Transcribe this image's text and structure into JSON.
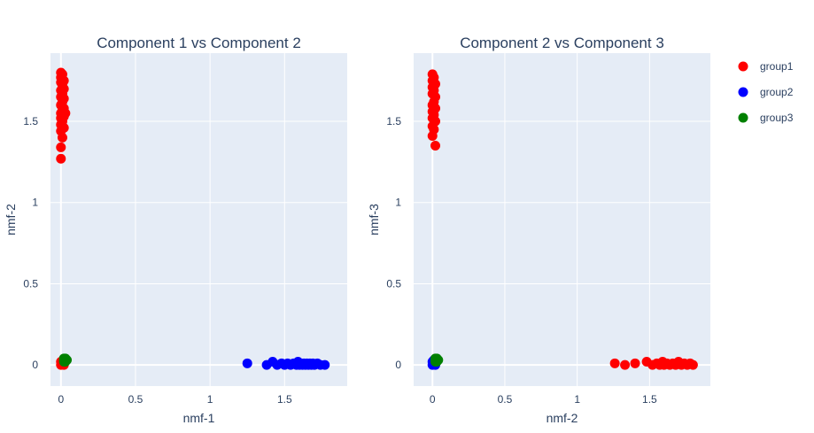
{
  "chart_data": [
    {
      "type": "scatter",
      "title": "Component 1 vs Component 2",
      "xlabel": "nmf-1",
      "ylabel": "nmf-2",
      "xlim": [
        -0.07,
        1.92
      ],
      "ylim": [
        -0.13,
        1.92
      ],
      "xticks": [
        0,
        0.5,
        1,
        1.5
      ],
      "xtick_labels": [
        "0",
        "0.5",
        "1",
        "1.5"
      ],
      "yticks": [
        0,
        0.5,
        1,
        1.5
      ],
      "ytick_labels": [
        "0",
        "0.5",
        "1",
        "1.5"
      ],
      "grid": true,
      "series": [
        {
          "name": "group1",
          "color": "#ff0000",
          "points": [
            [
              0.0,
              1.8
            ],
            [
              0.01,
              1.79
            ],
            [
              0.0,
              1.77
            ],
            [
              0.02,
              1.75
            ],
            [
              0.0,
              1.74
            ],
            [
              0.01,
              1.72
            ],
            [
              0.02,
              1.7
            ],
            [
              0.0,
              1.69
            ],
            [
              0.01,
              1.67
            ],
            [
              0.0,
              1.65
            ],
            [
              0.02,
              1.64
            ],
            [
              0.01,
              1.62
            ],
            [
              0.0,
              1.6
            ],
            [
              0.02,
              1.58
            ],
            [
              0.01,
              1.57
            ],
            [
              0.0,
              1.55
            ],
            [
              0.03,
              1.55
            ],
            [
              0.02,
              1.53
            ],
            [
              0.0,
              1.52
            ],
            [
              0.01,
              1.5
            ],
            [
              0.0,
              1.48
            ],
            [
              0.02,
              1.46
            ],
            [
              0.0,
              1.44
            ],
            [
              0.01,
              1.4
            ],
            [
              0.0,
              1.34
            ],
            [
              0.0,
              1.27
            ],
            [
              0.0,
              0.0
            ],
            [
              0.01,
              0.01
            ],
            [
              0.02,
              0.0
            ],
            [
              0.0,
              0.02
            ]
          ]
        },
        {
          "name": "group2",
          "color": "#0000ff",
          "points": [
            [
              1.25,
              0.01
            ],
            [
              1.38,
              0.0
            ],
            [
              1.42,
              0.02
            ],
            [
              1.45,
              0.0
            ],
            [
              1.48,
              0.01
            ],
            [
              1.5,
              0.0
            ],
            [
              1.52,
              0.01
            ],
            [
              1.54,
              0.0
            ],
            [
              1.56,
              0.01
            ],
            [
              1.58,
              0.0
            ],
            [
              1.59,
              0.02
            ],
            [
              1.6,
              0.0
            ],
            [
              1.61,
              0.01
            ],
            [
              1.62,
              0.0
            ],
            [
              1.63,
              0.01
            ],
            [
              1.64,
              0.0
            ],
            [
              1.65,
              0.01
            ],
            [
              1.66,
              0.0
            ],
            [
              1.67,
              0.01
            ],
            [
              1.68,
              0.0
            ],
            [
              1.69,
              0.01
            ],
            [
              1.7,
              0.0
            ],
            [
              1.72,
              0.01
            ],
            [
              1.74,
              0.0
            ],
            [
              1.77,
              0.0
            ]
          ]
        },
        {
          "name": "group3",
          "color": "#008000",
          "points": [
            [
              0.02,
              0.02
            ],
            [
              0.03,
              0.03
            ],
            [
              0.02,
              0.04
            ],
            [
              0.03,
              0.02
            ],
            [
              0.03,
              0.04
            ],
            [
              0.02,
              0.03
            ],
            [
              0.04,
              0.03
            ],
            [
              0.03,
              0.03
            ]
          ]
        }
      ]
    },
    {
      "type": "scatter",
      "title": "Component 2 vs Component 3",
      "xlabel": "nmf-2",
      "ylabel": "nmf-3",
      "xlim": [
        -0.13,
        1.92
      ],
      "ylim": [
        -0.13,
        1.92
      ],
      "xticks": [
        0,
        0.5,
        1,
        1.5
      ],
      "xtick_labels": [
        "0",
        "0.5",
        "1",
        "1.5"
      ],
      "yticks": [
        0,
        0.5,
        1,
        1.5
      ],
      "ytick_labels": [
        "0",
        "0.5",
        "1",
        "1.5"
      ],
      "grid": true,
      "series": [
        {
          "name": "group1",
          "color": "#ff0000",
          "points": [
            [
              0.0,
              1.79
            ],
            [
              0.01,
              1.77
            ],
            [
              0.0,
              1.75
            ],
            [
              0.02,
              1.73
            ],
            [
              0.0,
              1.71
            ],
            [
              0.01,
              1.69
            ],
            [
              0.0,
              1.67
            ],
            [
              0.02,
              1.65
            ],
            [
              0.01,
              1.62
            ],
            [
              0.0,
              1.6
            ],
            [
              0.02,
              1.58
            ],
            [
              0.0,
              1.56
            ],
            [
              0.01,
              1.54
            ],
            [
              0.0,
              1.52
            ],
            [
              0.02,
              1.5
            ],
            [
              0.0,
              1.47
            ],
            [
              0.01,
              1.45
            ],
            [
              0.0,
              1.41
            ],
            [
              0.02,
              1.35
            ],
            [
              1.26,
              0.01
            ],
            [
              1.33,
              0.0
            ],
            [
              1.4,
              0.01
            ],
            [
              1.48,
              0.02
            ],
            [
              1.52,
              0.0
            ],
            [
              1.55,
              0.01
            ],
            [
              1.57,
              0.0
            ],
            [
              1.59,
              0.02
            ],
            [
              1.6,
              0.0
            ],
            [
              1.62,
              0.01
            ],
            [
              1.64,
              0.0
            ],
            [
              1.66,
              0.01
            ],
            [
              1.68,
              0.0
            ],
            [
              1.7,
              0.02
            ],
            [
              1.72,
              0.0
            ],
            [
              1.74,
              0.01
            ],
            [
              1.76,
              0.0
            ],
            [
              1.78,
              0.01
            ],
            [
              1.8,
              0.0
            ]
          ]
        },
        {
          "name": "group2",
          "color": "#0000ff",
          "points": [
            [
              0.0,
              0.0
            ],
            [
              0.01,
              0.01
            ],
            [
              0.0,
              0.02
            ],
            [
              0.02,
              0.0
            ],
            [
              0.01,
              0.03
            ]
          ]
        },
        {
          "name": "group3",
          "color": "#008000",
          "points": [
            [
              0.02,
              0.02
            ],
            [
              0.03,
              0.03
            ],
            [
              0.02,
              0.04
            ],
            [
              0.03,
              0.02
            ],
            [
              0.04,
              0.03
            ],
            [
              0.03,
              0.04
            ],
            [
              0.02,
              0.03
            ]
          ]
        }
      ]
    }
  ],
  "legend": {
    "position": "right",
    "items": [
      {
        "label": "group1",
        "color": "#ff0000"
      },
      {
        "label": "group2",
        "color": "#0000ff"
      },
      {
        "label": "group3",
        "color": "#008000"
      }
    ]
  },
  "colors": {
    "plot_bg": "#e5ecf6",
    "grid": "#ffffff",
    "text": "#2a3f5f"
  }
}
